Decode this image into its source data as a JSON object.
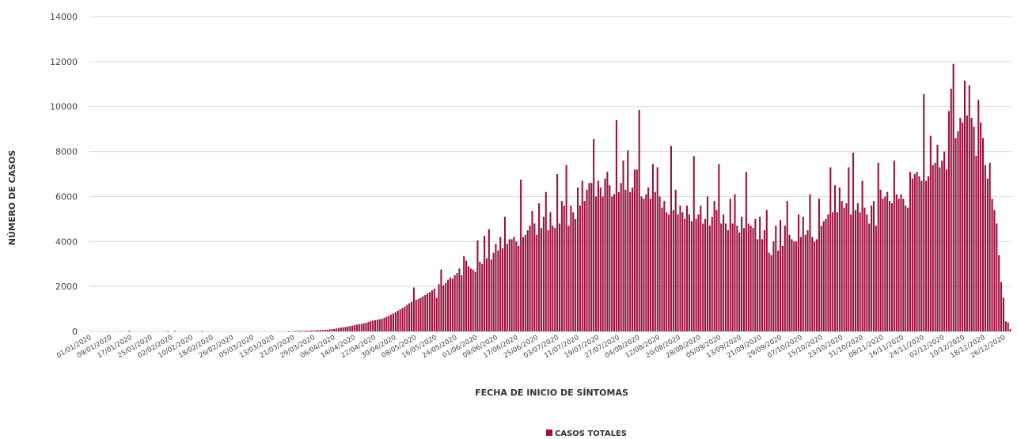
{
  "chart_data": {
    "type": "bar",
    "ylabel": "NÚMERO DE CASOS",
    "xlabel": "FECHA DE INICIO DE SÍNTOMAS",
    "legend": {
      "label": "CASOS TOTALES",
      "position": "bottom-center"
    },
    "ylim": [
      0,
      14000
    ],
    "yticks": [
      0,
      2000,
      4000,
      6000,
      8000,
      10000,
      12000,
      14000
    ],
    "ytick_labels": [
      "0",
      "2000",
      "4000",
      "6000",
      "8000",
      "10000",
      "12000",
      "14000"
    ],
    "grid": true,
    "bar_color": "#9b0f3b",
    "x_start": "01/01/2020",
    "x_end": "29/12/2020",
    "xtick_labels": [
      "01/01/2020",
      "09/01/2020",
      "17/01/2020",
      "25/01/2020",
      "02/02/2020",
      "10/02/2020",
      "18/02/2020",
      "26/02/2020",
      "05/03/2020",
      "13/03/2020",
      "21/03/2020",
      "29/03/2020",
      "06/04/2020",
      "14/04/2020",
      "22/04/2020",
      "30/04/2020",
      "08/05/2020",
      "16/05/2020",
      "24/05/2020",
      "01/06/2020",
      "09/06/2020",
      "17/06/2020",
      "25/06/2020",
      "03/07/2020",
      "11/07/2020",
      "19/07/2020",
      "27/07/2020",
      "04/08/2020",
      "12/08/2020",
      "20/08/2020",
      "28/08/2020",
      "05/09/2020",
      "13/09/2020",
      "21/09/2020",
      "29/09/2020",
      "07/10/2020",
      "15/10/2020",
      "23/10/2020",
      "31/10/2020",
      "08/11/2020",
      "16/11/2020",
      "24/11/2020",
      "02/12/2020",
      "10/12/2020",
      "18/12/2020",
      "26/12/2020"
    ],
    "values": [
      0,
      0,
      0,
      0,
      0,
      0,
      0,
      0,
      0,
      0,
      0,
      0,
      0,
      0,
      0,
      0,
      0,
      30,
      0,
      0,
      0,
      0,
      0,
      0,
      0,
      0,
      0,
      0,
      0,
      0,
      0,
      0,
      0,
      0,
      20,
      0,
      0,
      20,
      0,
      0,
      0,
      0,
      0,
      0,
      0,
      0,
      0,
      0,
      0,
      20,
      0,
      0,
      0,
      0,
      0,
      0,
      0,
      0,
      0,
      0,
      0,
      0,
      0,
      0,
      0,
      0,
      0,
      0,
      0,
      0,
      0,
      0,
      0,
      0,
      0,
      0,
      0,
      0,
      0,
      0,
      0,
      0,
      0,
      0,
      0,
      0,
      0,
      15,
      0,
      20,
      20,
      25,
      25,
      30,
      30,
      35,
      35,
      40,
      45,
      50,
      55,
      60,
      60,
      70,
      80,
      90,
      100,
      110,
      130,
      150,
      170,
      180,
      200,
      220,
      240,
      260,
      280,
      300,
      320,
      340,
      360,
      380,
      420,
      460,
      480,
      500,
      520,
      540,
      560,
      600,
      650,
      700,
      750,
      800,
      860,
      920,
      980,
      1040,
      1100,
      1180,
      1250,
      1320,
      1950,
      1400,
      1450,
      1500,
      1560,
      1620,
      1700,
      1750,
      1820,
      1900,
      1500,
      2100,
      2750,
      2050,
      2150,
      2300,
      2400,
      2350,
      2500,
      2600,
      2800,
      2500,
      3350,
      3150,
      2900,
      2800,
      2750,
      2650,
      4050,
      3100,
      3000,
      4250,
      3250,
      4550,
      3200,
      3500,
      3900,
      3600,
      4200,
      3700,
      5100,
      3900,
      4100,
      4100,
      4200,
      4000,
      3800,
      6750,
      4200,
      4300,
      4500,
      4700,
      5350,
      4800,
      4300,
      5700,
      4600,
      5100,
      6200,
      4500,
      5300,
      4700,
      4600,
      7000,
      4800,
      5800,
      5600,
      7400,
      4700,
      5600,
      5300,
      5000,
      6400,
      5600,
      6700,
      5800,
      6300,
      6600,
      6600,
      8550,
      6000,
      6700,
      6400,
      6000,
      6800,
      7100,
      6500,
      6000,
      6100,
      9400,
      6200,
      6600,
      7600,
      6300,
      8050,
      6200,
      6400,
      7200,
      7200,
      9850,
      6000,
      5900,
      6100,
      6400,
      5900,
      7450,
      6200,
      7300,
      6000,
      5500,
      5800,
      5300,
      5200,
      8250,
      5400,
      6300,
      5200,
      5600,
      5300,
      5000,
      5600,
      5200,
      4900,
      7800,
      5000,
      5200,
      5600,
      4800,
      5000,
      6000,
      4700,
      5100,
      5800,
      5400,
      7450,
      4800,
      5200,
      4800,
      4500,
      5900,
      4800,
      6100,
      4700,
      4400,
      5100,
      4600,
      7100,
      4800,
      4700,
      4600,
      5000,
      4100,
      5100,
      4100,
      4500,
      5400,
      3500,
      3400,
      4000,
      4700,
      3600,
      4950,
      3800,
      4700,
      5800,
      4300,
      4100,
      4000,
      4000,
      5200,
      4200,
      5100,
      4300,
      4500,
      6100,
      4200,
      4000,
      4100,
      5900,
      4700,
      4900,
      5000,
      5200,
      7300,
      5300,
      6500,
      5300,
      6400,
      5800,
      5500,
      5700,
      7300,
      5200,
      7950,
      5400,
      5700,
      5300,
      6700,
      5500,
      5200,
      4800,
      5600,
      5800,
      4700,
      7500,
      6300,
      5900,
      6000,
      6200,
      5800,
      5700,
      7600,
      6100,
      5900,
      6100,
      5900,
      5600,
      5500,
      7100,
      6800,
      7000,
      7100,
      6900,
      6700,
      10550,
      6700,
      6900,
      8700,
      7400,
      7500,
      8300,
      7300,
      7600,
      8000,
      7200,
      9800,
      10800,
      11900,
      8600,
      8900,
      9500,
      9300,
      11150,
      9600,
      10950,
      9500,
      9100,
      7800,
      10300,
      9300,
      8600,
      7400,
      6800,
      7500,
      5900,
      5400,
      4800,
      3400,
      2200,
      1500,
      450,
      400,
      100
    ]
  }
}
